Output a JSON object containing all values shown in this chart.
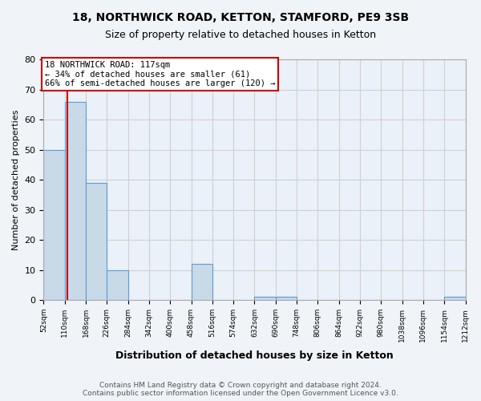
{
  "title1": "18, NORTHWICK ROAD, KETTON, STAMFORD, PE9 3SB",
  "title2": "Size of property relative to detached houses in Ketton",
  "xlabel": "Distribution of detached houses by size in Ketton",
  "ylabel": "Number of detached properties",
  "bin_edges": [
    52,
    110,
    168,
    226,
    284,
    342,
    400,
    458,
    516,
    574,
    632,
    690,
    748,
    806,
    864,
    922,
    980,
    1038,
    1096,
    1154,
    1212
  ],
  "bar_heights": [
    50,
    66,
    39,
    10,
    0,
    0,
    0,
    12,
    0,
    0,
    1,
    1,
    0,
    0,
    0,
    0,
    0,
    0,
    0,
    1
  ],
  "bar_color": "#c8d9e8",
  "bar_edge_color": "#5b9bd5",
  "property_size": 117,
  "annotation_line1": "18 NORTHWICK ROAD: 117sqm",
  "annotation_line2": "← 34% of detached houses are smaller (61)",
  "annotation_line3": "66% of semi-detached houses are larger (120) →",
  "annotation_box_color": "#ffffff",
  "annotation_box_edge": "#cc0000",
  "vline_color": "#cc0000",
  "ylim": [
    0,
    80
  ],
  "yticks": [
    0,
    10,
    20,
    30,
    40,
    50,
    60,
    70,
    80
  ],
  "footer": "Contains HM Land Registry data © Crown copyright and database right 2024.\nContains public sector information licensed under the Open Government Licence v3.0.",
  "grid_color": "#d0d0d0",
  "background_color": "#eaf1f8",
  "fig_background": "#f0f4f8"
}
